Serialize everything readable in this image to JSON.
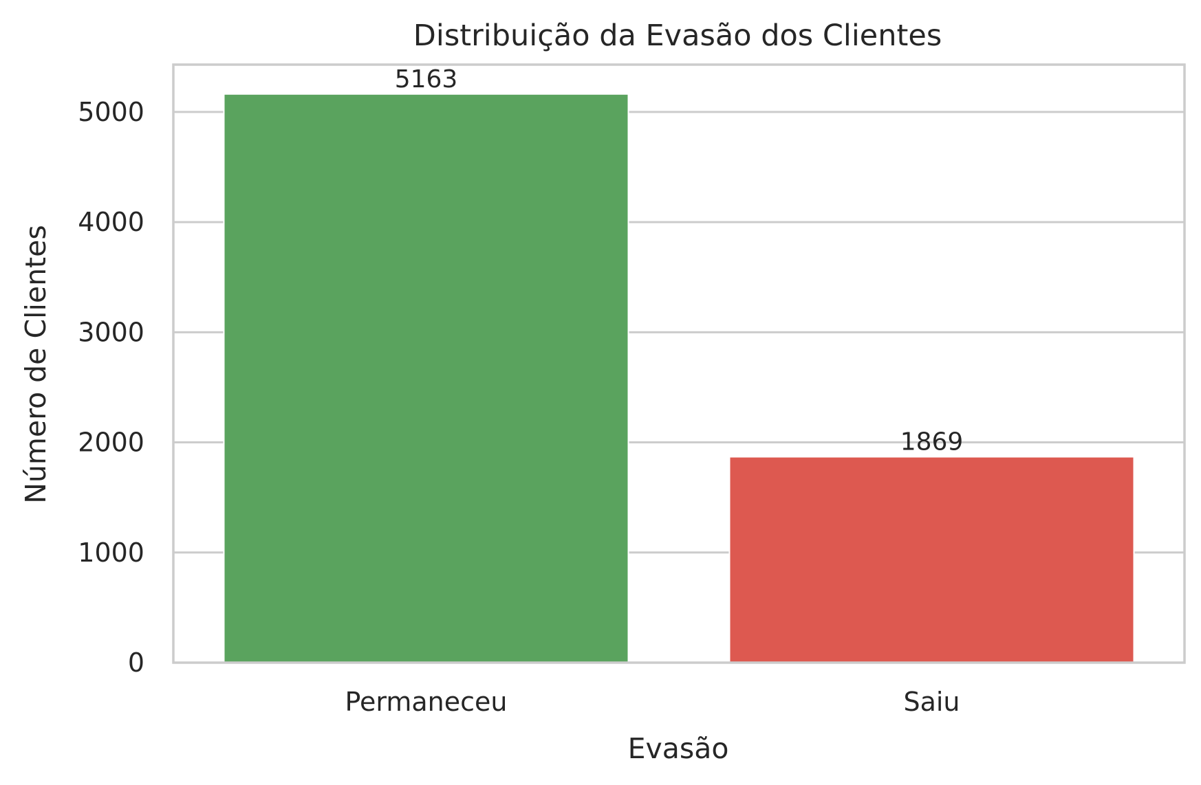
{
  "chart_data": {
    "type": "bar",
    "title": "Distribuição da Evasão dos Clientes",
    "xlabel": "Evasão",
    "ylabel": "Número de Clientes",
    "categories": [
      "Permaneceu",
      "Saiu"
    ],
    "values": [
      5163,
      1869
    ],
    "data_labels": [
      "5163",
      "1869"
    ],
    "colors": [
      "#5aa35e",
      "#dd5950"
    ],
    "ylim": [
      0,
      5430
    ],
    "yticks": [
      0,
      1000,
      2000,
      3000,
      4000,
      5000
    ],
    "ytick_labels": [
      "0",
      "1000",
      "2000",
      "3000",
      "4000",
      "5000"
    ],
    "grid": "horizontal",
    "legend": "none"
  }
}
